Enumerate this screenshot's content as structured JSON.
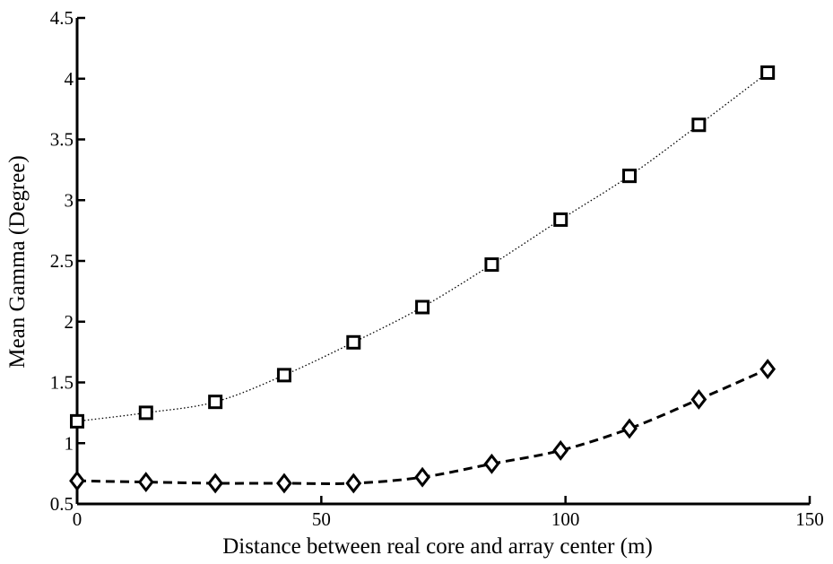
{
  "chart_data": {
    "type": "line",
    "title": "",
    "xlabel": "Distance between real core and array center (m)",
    "ylabel": "Mean Gamma (Degree)",
    "xlim": [
      0,
      150
    ],
    "ylim": [
      0.5,
      4.5
    ],
    "xticks": [
      0,
      50,
      100,
      150
    ],
    "xtick_labels": [
      "0",
      "50",
      "100",
      "150"
    ],
    "yticks": [
      0.5,
      1,
      1.5,
      2,
      2.5,
      3,
      3.5,
      4,
      4.5
    ],
    "ytick_labels": [
      "0.5",
      "1",
      "1.5",
      "2",
      "2.5",
      "3",
      "3.5",
      "4",
      "4.5"
    ],
    "grid": false,
    "x": [
      0,
      14.1,
      28.3,
      42.4,
      56.6,
      70.7,
      84.9,
      99.0,
      113.1,
      127.3,
      141.4
    ],
    "series": [
      {
        "marker": "square",
        "line_style": "dotted",
        "color": "#000000",
        "values": [
          1.18,
          1.25,
          1.34,
          1.56,
          1.83,
          2.12,
          2.47,
          2.84,
          3.2,
          3.62,
          4.05
        ]
      },
      {
        "marker": "diamond",
        "line_style": "dashed",
        "color": "#000000",
        "values": [
          0.69,
          0.68,
          0.67,
          0.67,
          0.67,
          0.72,
          0.83,
          0.94,
          1.12,
          1.36,
          1.61
        ]
      }
    ]
  }
}
